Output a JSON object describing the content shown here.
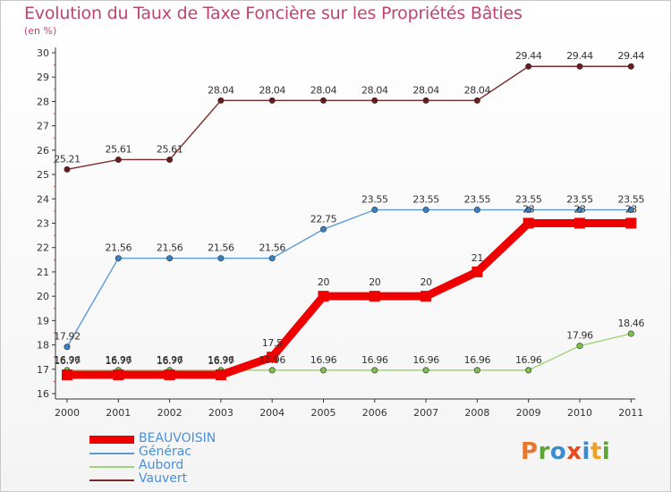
{
  "title": "Evolution du Taux de Taxe Foncière sur les Propriétés Bâties",
  "subtitle": "(en %)",
  "logo": {
    "text": "Proxiti",
    "letters": [
      {
        "ch": "P",
        "color": "#e8762b"
      },
      {
        "ch": "r",
        "color": "#5aa832"
      },
      {
        "ch": "o",
        "color": "#3a8bd0"
      },
      {
        "ch": "x",
        "color": "#e84a1e"
      },
      {
        "ch": "i",
        "color": "#3a8bd0"
      },
      {
        "ch": "t",
        "color": "#f0a020"
      },
      {
        "ch": "i",
        "color": "#5aa832"
      }
    ]
  },
  "chart_data": {
    "type": "line",
    "title": "Evolution du Taux de Taxe Foncière sur les Propriétés Bâties",
    "subtitle": "(en %)",
    "xlabel": "",
    "ylabel": "(en %)",
    "categories": [
      "2000",
      "2001",
      "2002",
      "2003",
      "2004",
      "2005",
      "2006",
      "2007",
      "2008",
      "2009",
      "2010",
      "2011"
    ],
    "ylim": [
      16,
      30
    ],
    "yticks": [
      16,
      17,
      18,
      19,
      20,
      21,
      22,
      23,
      24,
      25,
      26,
      27,
      28,
      29,
      30
    ],
    "grid": false,
    "legend_position": "bottom-left",
    "series": [
      {
        "name": "BEAUVOISIN",
        "color": "#ee0000",
        "thick": true,
        "values": [
          16.77,
          16.77,
          16.77,
          16.77,
          17.5,
          20,
          20,
          20,
          21,
          23,
          23,
          23
        ],
        "labels": [
          "16.77",
          "16.77",
          "16.77",
          "16.77",
          "17.5",
          "20",
          "20",
          "20",
          "21",
          "23",
          "23",
          "23"
        ]
      },
      {
        "name": "Générac",
        "color": "#5b9bd5",
        "marker": "#3a7fc0",
        "values": [
          17.92,
          21.56,
          21.56,
          21.56,
          21.56,
          22.75,
          23.55,
          23.55,
          23.55,
          23.55,
          23.55,
          23.55
        ],
        "labels": [
          "17.92",
          "21.56",
          "21.56",
          "21.56",
          "21.56",
          "22.75",
          "23.55",
          "23.55",
          "23.55",
          "23.55",
          "23.55",
          "23.55"
        ]
      },
      {
        "name": "Aubord",
        "color": "#9fd47a",
        "marker": "#7ec04a",
        "values": [
          16.96,
          16.96,
          16.96,
          16.96,
          16.96,
          16.96,
          16.96,
          16.96,
          16.96,
          16.96,
          17.96,
          18.46
        ],
        "labels": [
          "16.96",
          "16.96",
          "16.96",
          "16.96",
          "16.96",
          "16.96",
          "16.96",
          "16.96",
          "16.96",
          "16.96",
          "17.96",
          "18.46"
        ]
      },
      {
        "name": "Vauvert",
        "color": "#7a2a2a",
        "marker": "#6a1c1c",
        "values": [
          25.21,
          25.61,
          25.61,
          28.04,
          28.04,
          28.04,
          28.04,
          28.04,
          28.04,
          29.44,
          29.44,
          29.44
        ],
        "labels": [
          "25.21",
          "25.61",
          "25.61",
          "28.04",
          "28.04",
          "28.04",
          "28.04",
          "28.04",
          "28.04",
          "29.44",
          "29.44",
          "29.44"
        ]
      }
    ]
  }
}
